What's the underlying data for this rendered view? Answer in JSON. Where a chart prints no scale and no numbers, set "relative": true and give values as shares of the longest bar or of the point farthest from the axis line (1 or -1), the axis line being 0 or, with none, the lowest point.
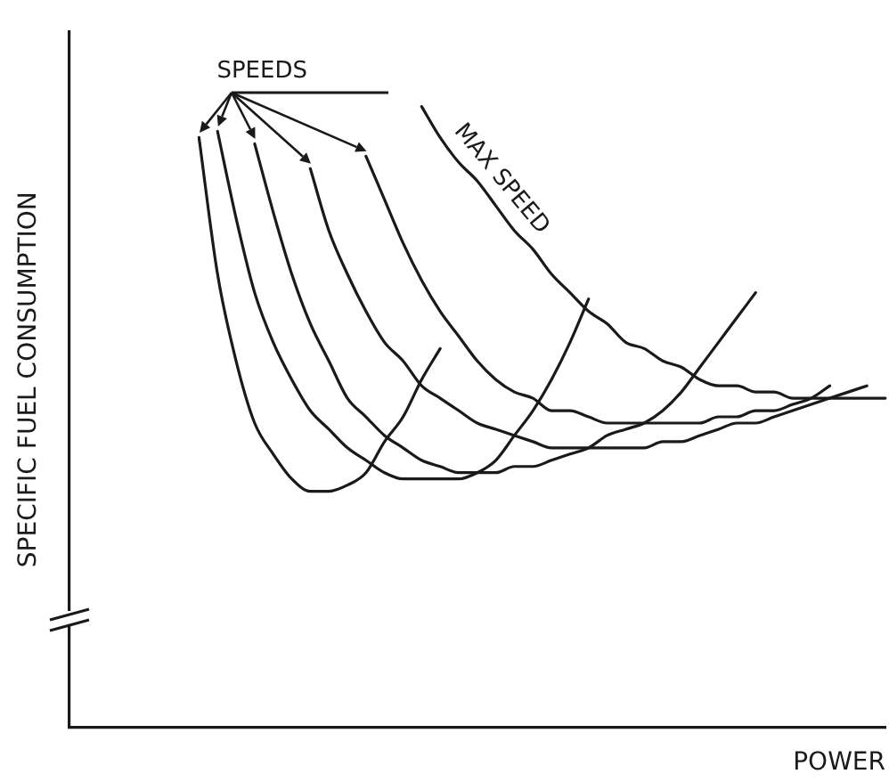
{
  "chart_data": {
    "type": "line",
    "relative": true,
    "xlabel": "POWER",
    "ylabel": "SPECIFIC FUEL CONSUMPTION",
    "annotations": [
      "SPEEDS"
    ],
    "legend": false,
    "grid": false,
    "tick_labels": false,
    "marker": "none",
    "line_style": "solid",
    "categories": [
      null,
      null,
      null,
      null,
      null,
      null,
      null,
      null,
      null,
      null,
      null,
      null,
      null,
      null,
      null,
      null,
      null,
      null,
      null,
      null,
      null,
      null,
      null,
      null,
      null,
      null,
      null,
      null,
      null,
      null,
      null,
      null,
      null,
      null,
      null,
      null,
      null,
      null,
      null,
      null,
      null,
      null,
      null,
      null,
      null
    ],
    "series": [
      {
        "color": "#1a1a1a",
        "values": [
          null,
          null,
          null,
          null,
          null,
          null,
          null,
          0.95,
          0.73,
          0.59,
          0.49,
          0.44,
          0.4,
          0.38,
          0.38,
          0.39,
          0.41,
          0.46,
          0.5,
          0.56,
          0.61,
          null,
          null,
          null,
          null,
          null,
          null,
          null,
          null,
          null,
          null,
          null,
          null,
          null,
          null,
          null,
          null,
          null,
          null,
          null,
          null,
          null,
          null,
          null,
          null
        ]
      },
      {
        "color": "#1a1a1a",
        "values": [
          null,
          null,
          null,
          null,
          null,
          null,
          null,
          null,
          0.96,
          0.82,
          0.7,
          0.62,
          0.56,
          0.51,
          0.48,
          0.45,
          0.43,
          0.41,
          0.4,
          0.4,
          0.4,
          0.4,
          0.41,
          0.43,
          0.47,
          0.51,
          0.56,
          0.62,
          0.69,
          null,
          null,
          null,
          null,
          null,
          null,
          null,
          null,
          null,
          null,
          null,
          null,
          null,
          null,
          null,
          null
        ]
      },
      {
        "color": "#1a1a1a",
        "values": [
          null,
          null,
          null,
          null,
          null,
          null,
          null,
          null,
          null,
          null,
          0.94,
          0.83,
          0.73,
          0.65,
          0.59,
          0.53,
          0.5,
          0.47,
          0.45,
          0.43,
          0.42,
          0.41,
          0.41,
          0.41,
          0.42,
          0.42,
          0.43,
          0.44,
          0.45,
          0.47,
          0.48,
          0.49,
          0.51,
          0.54,
          0.58,
          0.62,
          0.66,
          0.7,
          null,
          null,
          null,
          null,
          null,
          null,
          null
        ]
      },
      {
        "color": "#1a1a1a",
        "values": [
          null,
          null,
          null,
          null,
          null,
          null,
          null,
          null,
          null,
          null,
          null,
          null,
          null,
          0.9,
          0.8,
          0.73,
          0.67,
          0.62,
          0.59,
          0.55,
          0.53,
          0.51,
          0.49,
          0.48,
          0.47,
          0.46,
          0.45,
          0.45,
          0.45,
          0.45,
          0.45,
          0.45,
          0.46,
          0.46,
          0.47,
          0.48,
          0.49,
          0.49,
          0.5,
          0.51,
          0.52,
          0.53,
          0.54,
          0.55,
          null
        ]
      },
      {
        "color": "#1a1a1a",
        "values": [
          null,
          null,
          null,
          null,
          null,
          null,
          null,
          null,
          null,
          null,
          null,
          null,
          null,
          null,
          null,
          null,
          0.92,
          0.85,
          0.78,
          0.72,
          0.67,
          0.63,
          0.59,
          0.56,
          0.54,
          0.53,
          0.51,
          0.51,
          0.5,
          0.49,
          0.49,
          0.49,
          0.49,
          0.49,
          0.49,
          0.5,
          0.5,
          0.51,
          0.51,
          0.52,
          0.53,
          0.55,
          null,
          null,
          null
        ]
      },
      {
        "name": "MAX SPEED",
        "color": "#1a1a1a",
        "values": [
          null,
          null,
          null,
          null,
          null,
          null,
          null,
          null,
          null,
          null,
          null,
          null,
          null,
          null,
          null,
          null,
          null,
          null,
          null,
          1,
          0.95,
          0.91,
          0.88,
          0.84,
          0.8,
          0.77,
          0.73,
          0.7,
          0.67,
          0.65,
          0.62,
          0.61,
          0.59,
          0.58,
          0.56,
          0.55,
          0.55,
          0.54,
          0.54,
          0.53,
          0.53,
          0.53,
          0.53,
          0.53,
          0.53
        ]
      }
    ]
  }
}
